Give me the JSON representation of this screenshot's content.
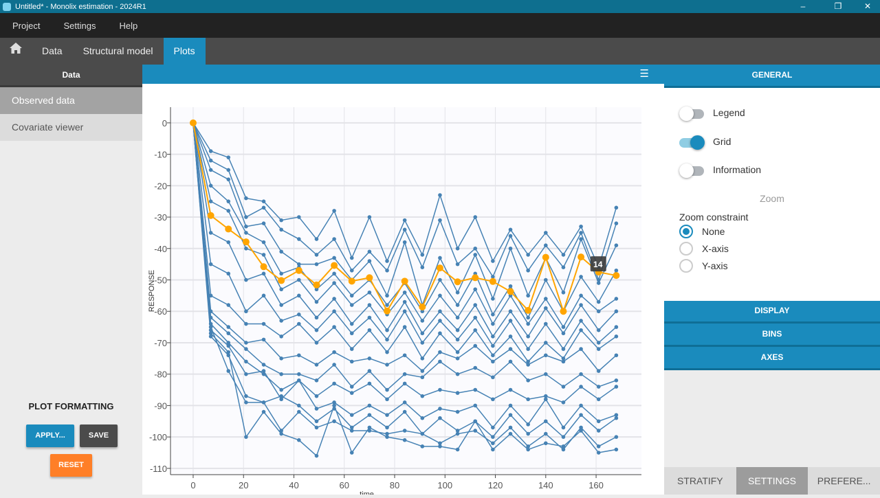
{
  "window": {
    "title": "Untitled* - Monolix estimation - 2024R1",
    "minimize": "–",
    "maximize": "❐",
    "close": "✕"
  },
  "menu": [
    "Project",
    "Settings",
    "Help"
  ],
  "tabs": [
    {
      "label": "Data"
    },
    {
      "label": "Structural model"
    },
    {
      "label": "Plots",
      "active": true
    }
  ],
  "left": {
    "header": "Data",
    "items": [
      {
        "label": "Observed data",
        "selected": true
      },
      {
        "label": "Covariate viewer"
      }
    ],
    "formatting_title": "PLOT FORMATTING",
    "apply": "APPLY...",
    "save": "SAVE",
    "reset": "RESET"
  },
  "right": {
    "general": "GENERAL",
    "legend": "Legend",
    "legend_on": false,
    "grid": "Grid",
    "grid_on": true,
    "information": "Information",
    "information_on": false,
    "zoom_title": "Zoom",
    "zoom_constraint": "Zoom constraint",
    "zoom_options": [
      "None",
      "X-axis",
      "Y-axis"
    ],
    "zoom_selected": "None",
    "sections": [
      "DISPLAY",
      "BINS",
      "AXES"
    ],
    "bottom_tabs": [
      "STRATIFY",
      "SETTINGS",
      "PREFERE..."
    ],
    "bottom_active": "SETTINGS"
  },
  "colors": {
    "accent": "#1a8bbd",
    "series": "#4682b4",
    "highlight": "#ffa500"
  },
  "chart_data": {
    "type": "line",
    "xlabel": "time",
    "ylabel": "RESPONSE",
    "xlim": [
      -9,
      178
    ],
    "ylim": [
      -112,
      5
    ],
    "xticks": [
      0,
      20,
      40,
      60,
      80,
      100,
      120,
      140,
      160
    ],
    "yticks": [
      0,
      -10,
      -20,
      -30,
      -40,
      -50,
      -60,
      -70,
      -80,
      -90,
      -100,
      -110
    ],
    "grid": true,
    "x": [
      0,
      7,
      14,
      21,
      28,
      35,
      42,
      49,
      56,
      63,
      70,
      77,
      84,
      91,
      98,
      105,
      112,
      119,
      126,
      133,
      140,
      147,
      154,
      161,
      168
    ],
    "series": [
      {
        "values": [
          0,
          -9,
          -11,
          -24,
          -25,
          -31,
          -30,
          -37,
          -28,
          -43,
          -30,
          -44,
          -31,
          -42,
          -23,
          -40,
          -30,
          -44,
          -34,
          -42,
          -35,
          -42,
          -33,
          -46,
          -27
        ]
      },
      {
        "values": [
          0,
          -12,
          -15,
          -30,
          -27,
          -34,
          -37,
          -42,
          -37,
          -47,
          -41,
          -47,
          -34,
          -46,
          -31,
          -45,
          -40,
          -49,
          -36,
          -47,
          -39,
          -46,
          -35,
          -50,
          -32
        ]
      },
      {
        "values": [
          0,
          -15,
          -18,
          -33,
          -32,
          -41,
          -45,
          -45,
          -43,
          -50,
          -44,
          -55,
          -38,
          -58,
          -43,
          -54,
          -42,
          -56,
          -40,
          -55,
          -43,
          -54,
          -37,
          -51,
          -39
        ]
      },
      {
        "values": [
          0,
          -20,
          -25,
          -35,
          -38,
          -48,
          -46,
          -53,
          -48,
          -55,
          -50,
          -58,
          -51,
          -60,
          -50,
          -58,
          -48,
          -61,
          -52,
          -62,
          -50,
          -60,
          -49,
          -57,
          -47
        ]
      },
      {
        "values": [
          0,
          -25,
          -28,
          -40,
          -42,
          -53,
          -50,
          -57,
          -51,
          -58,
          -54,
          -61,
          -54,
          -63,
          -55,
          -62,
          -53,
          -64,
          -55,
          -64,
          -56,
          -65,
          -55,
          -60,
          -56
        ]
      },
      {
        "values": [
          0,
          -35,
          -38,
          -50,
          -48,
          -58,
          -55,
          -62,
          -56,
          -64,
          -58,
          -66,
          -57,
          -67,
          -60,
          -66,
          -58,
          -68,
          -60,
          -68,
          -59,
          -67,
          -58,
          -66,
          -60
        ]
      },
      {
        "values": [
          0,
          -45,
          -48,
          -60,
          -55,
          -63,
          -61,
          -66,
          -60,
          -67,
          -62,
          -69,
          -60,
          -70,
          -63,
          -69,
          -62,
          -71,
          -63,
          -72,
          -64,
          -72,
          -63,
          -70,
          -65
        ]
      },
      {
        "values": [
          0,
          -55,
          -58,
          -64,
          -64,
          -68,
          -64,
          -70,
          -65,
          -72,
          -66,
          -73,
          -65,
          -75,
          -67,
          -73,
          -66,
          -74,
          -68,
          -76,
          -70,
          -75,
          -66,
          -72,
          -68
        ]
      },
      {
        "values": [
          0,
          -60,
          -65,
          -70,
          -69,
          -75,
          -74,
          -77,
          -73,
          -76,
          -75,
          -77,
          -74,
          -79,
          -73,
          -75,
          -71,
          -76,
          -72,
          -77,
          -74,
          -76,
          -72,
          -79,
          -74
        ]
      },
      {
        "values": [
          0,
          -62,
          -67,
          -72,
          -77,
          -80,
          -80,
          -82,
          -77,
          -84,
          -79,
          -85,
          -80,
          -81,
          -76,
          -80,
          -78,
          -81,
          -76,
          -82,
          -80,
          -84,
          -80,
          -84,
          -82
        ]
      },
      {
        "values": [
          0,
          -64,
          -70,
          -76,
          -80,
          -85,
          -82,
          -87,
          -83,
          -86,
          -83,
          -88,
          -83,
          -87,
          -85,
          -86,
          -85,
          -88,
          -85,
          -88,
          -87,
          -89,
          -84,
          -88,
          -84
        ]
      },
      {
        "values": [
          0,
          -66,
          -71,
          -80,
          -79,
          -88,
          -82,
          -91,
          -89,
          -93,
          -90,
          -93,
          -89,
          -94,
          -91,
          -92,
          -90,
          -97,
          -90,
          -96,
          -88,
          -97,
          -90,
          -95,
          -93
        ]
      },
      {
        "values": [
          0,
          -68,
          -74,
          -87,
          -89,
          -87,
          -90,
          -95,
          -91,
          -97,
          -93,
          -97,
          -92,
          -99,
          -94,
          -98,
          -95,
          -100,
          -93,
          -99,
          -95,
          -100,
          -93,
          -98,
          -94
        ]
      },
      {
        "values": [
          0,
          -65,
          -79,
          -89,
          -89,
          -98,
          -92,
          -97,
          -95,
          -98,
          -98,
          -99,
          -98,
          -99,
          -102,
          -99,
          -98,
          -102,
          -97,
          -103,
          -99,
          -104,
          -97,
          -103,
          -100
        ]
      },
      {
        "values": [
          0,
          -67,
          -73,
          -100,
          -92,
          -99,
          -101,
          -106,
          -90,
          -105,
          -97,
          -100,
          -101,
          -103,
          -103,
          -104,
          -95,
          -104,
          -99,
          -104,
          -102,
          -103,
          -98,
          -105,
          -104
        ]
      }
    ],
    "highlighted": {
      "id": "14",
      "values": [
        0,
        -29.5,
        -33.8,
        -37.9,
        -45.8,
        -50.2,
        -47,
        -51.6,
        -45.4,
        -50.4,
        -49.3,
        -59.9,
        -50.4,
        -58.6,
        -46.2,
        -50.6,
        -49.3,
        -50.5,
        -53.7,
        -59.7,
        -42.8,
        -60,
        -42.7,
        -47.5,
        -48.6
      ]
    },
    "tooltip": "14"
  }
}
